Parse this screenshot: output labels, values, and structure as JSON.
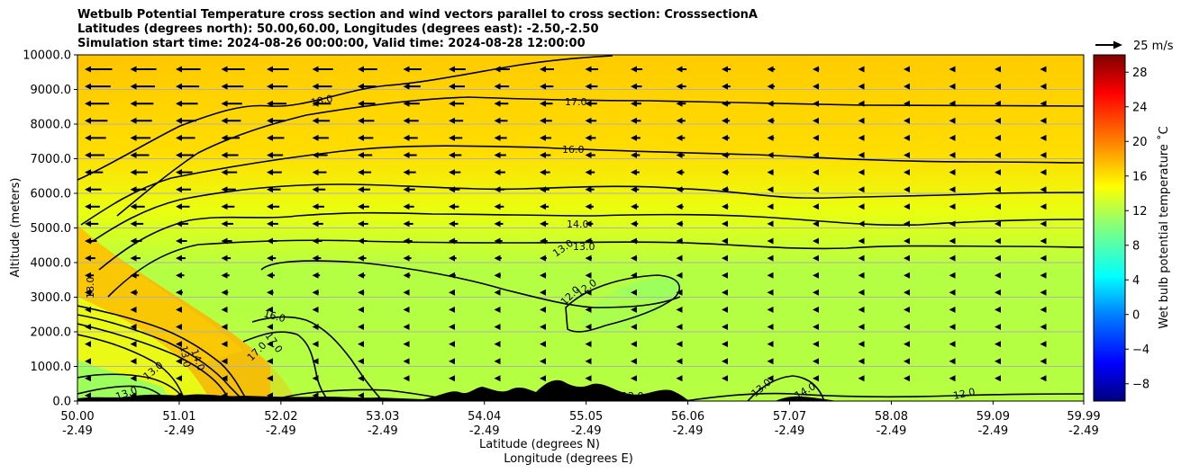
{
  "chart_data": {
    "type": "heatmap",
    "title_lines": [
      "Wetbulb Potential Temperature cross section and wind vectors parallel to cross section: CrosssectionA",
      "Latitudes (degrees north): 50.00,60.00, Longitudes (degrees east): -2.50,-2.50",
      "Simulation start time: 2024-08-26 00:00:00, Valid time: 2024-08-28 12:00:00"
    ],
    "xlabel_lat": "Latitude (degrees N)",
    "xlabel_lon": "Longitude (degrees E)",
    "ylabel": "Altitude (meters)",
    "xlim": [
      50.0,
      59.99
    ],
    "ylim": [
      0,
      10000
    ],
    "x_ticks": [
      {
        "lat": "50.00",
        "lon": "-2.49"
      },
      {
        "lat": "51.01",
        "lon": "-2.49"
      },
      {
        "lat": "52.02",
        "lon": "-2.49"
      },
      {
        "lat": "53.03",
        "lon": "-2.49"
      },
      {
        "lat": "54.04",
        "lon": "-2.49"
      },
      {
        "lat": "55.05",
        "lon": "-2.49"
      },
      {
        "lat": "56.06",
        "lon": "-2.49"
      },
      {
        "lat": "57.07",
        "lon": "-2.49"
      },
      {
        "lat": "58.08",
        "lon": "-2.49"
      },
      {
        "lat": "59.09",
        "lon": "-2.49"
      },
      {
        "lat": "59.99",
        "lon": "-2.49"
      }
    ],
    "y_ticks": [
      "0.0",
      "1000.0",
      "2000.0",
      "3000.0",
      "4000.0",
      "5000.0",
      "6000.0",
      "7000.0",
      "8000.0",
      "9000.0",
      "10000.0"
    ],
    "grid": "horizontal",
    "colorbar": {
      "label": "Wet bulb potential temperature $^\\circ$C",
      "label_text": "Wet bulb potential temperature ˚C",
      "range": [
        -10,
        30
      ],
      "ticks": [
        "−8",
        "−4",
        "0",
        "4",
        "8",
        "12",
        "16",
        "20",
        "24",
        "28"
      ],
      "colormap": "jet"
    },
    "quiver_key": "25 m/s",
    "contour_labels": [
      "18.0",
      "17.0",
      "16.0",
      "14.0",
      "13.0",
      "13.0",
      "12.0",
      "12.0",
      "16.0",
      "17.0",
      "17.0",
      "13.0",
      "13.0",
      "12.0",
      "13.0",
      "14.0",
      "14.0",
      "12.0",
      "13.0",
      "18.0",
      "13.0",
      "14.0"
    ],
    "contour_levels": [
      12,
      13,
      14,
      16,
      17,
      18
    ],
    "colors": {
      "terrain": "#000000",
      "grid": "#b0b0b0",
      "contour": "#000000"
    }
  }
}
